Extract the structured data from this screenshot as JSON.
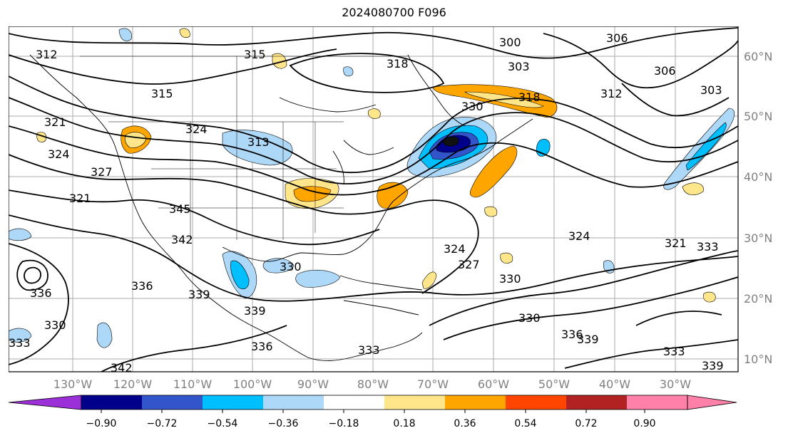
{
  "title": "2024080700 F096",
  "map": {
    "lon_ticks": [
      "130°W",
      "120°W",
      "110°W",
      "100°W",
      "90°W",
      "80°W",
      "70°W",
      "60°W",
      "50°W",
      "40°W",
      "30°W"
    ],
    "lat_ticks": [
      "60°N",
      "50°N",
      "40°N",
      "30°N",
      "20°N",
      "10°N"
    ],
    "contour_labels": [
      "312",
      "315",
      "315",
      "318",
      "300",
      "303",
      "306",
      "306",
      "303",
      "312",
      "318",
      "330",
      "321",
      "324",
      "327",
      "324",
      "313",
      "321",
      "345",
      "342",
      "336",
      "336",
      "339",
      "330",
      "330",
      "333",
      "336",
      "339",
      "342",
      "333",
      "330",
      "330",
      "336",
      "339",
      "333",
      "339",
      "324",
      "327",
      "324",
      "321",
      "333"
    ]
  },
  "colorbar": {
    "tick_labels": [
      "−0.90",
      "−0.72",
      "−0.54",
      "−0.36",
      "−0.18",
      "0.18",
      "0.36",
      "0.54",
      "0.72",
      "0.90"
    ],
    "colors": [
      "#9b30d9",
      "#00008b",
      "#3355cc",
      "#00bfff",
      "#add8f7",
      "#ffffff",
      "#ffe68a",
      "#ffa500",
      "#ff4500",
      "#b22222",
      "#ff80a8"
    ]
  }
}
